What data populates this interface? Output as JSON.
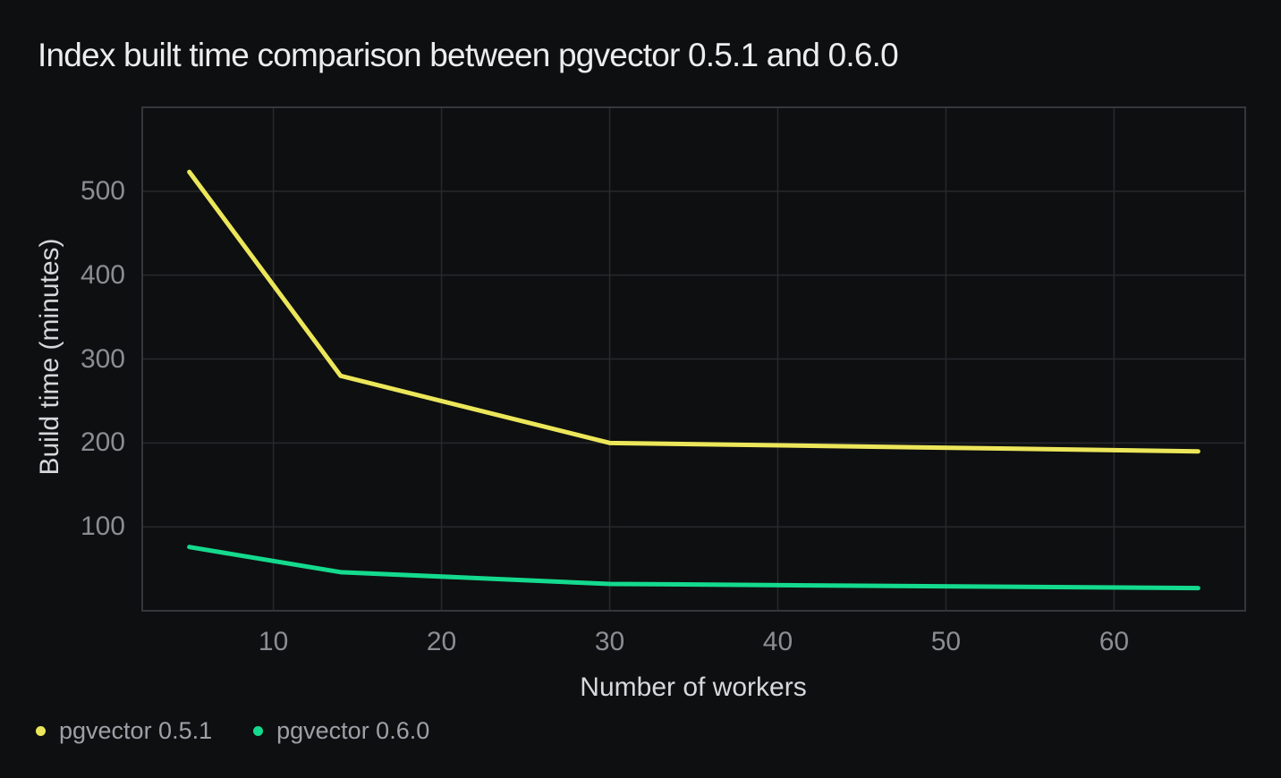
{
  "page": {
    "background": "#0e0f10",
    "title": "Index built time comparison between pgvector 0.5.1 and 0.6.0"
  },
  "chart_data": {
    "type": "line",
    "title": "Index built time comparison between pgvector 0.5.1 and 0.6.0",
    "xlabel": "Number of workers",
    "ylabel": "Build time (minutes)",
    "x": [
      5,
      14,
      30,
      65
    ],
    "series": [
      {
        "name": "pgvector 0.5.1",
        "color": "#ece65a",
        "values": [
          523,
          280,
          200,
          190
        ]
      },
      {
        "name": "pgvector 0.6.0",
        "color": "#14da8e",
        "values": [
          76,
          46,
          32,
          27
        ]
      }
    ],
    "xlim": [
      2.2,
      67.8
    ],
    "ylim": [
      0,
      600
    ],
    "xticks": [
      10,
      20,
      30,
      40,
      50,
      60
    ],
    "yticks": [
      100,
      200,
      300,
      400,
      500
    ],
    "grid": true,
    "grid_color": "#27292c",
    "border_color": "#34373b",
    "tick_label_color": "#8b8d93",
    "legend_position": "bottom-left",
    "line_width": 5
  }
}
